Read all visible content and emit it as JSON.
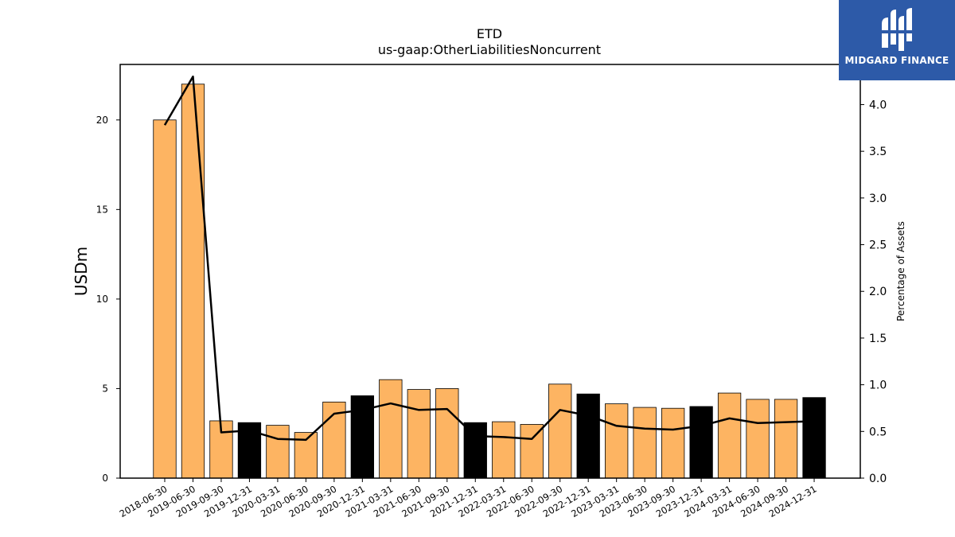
{
  "logo": {
    "text": "MIDGARD FINANCE",
    "icon": "midgard-logo-icon",
    "color": "#2d5aa8"
  },
  "chart_data": {
    "type": "bar",
    "title": "ETD",
    "subtitle": "us-gaap:OtherLiabilitiesNoncurrent",
    "ylabel": "USDm",
    "y2label": "Percentage of Assets",
    "ylim": [
      0,
      23.1
    ],
    "y2lim": [
      0,
      4.43
    ],
    "yticks": [
      0,
      5,
      10,
      15,
      20
    ],
    "y2ticks": [
      "0.0",
      "0.5",
      "1.0",
      "1.5",
      "2.0",
      "2.5",
      "3.0",
      "3.5",
      "4.0"
    ],
    "grid": false,
    "categories": [
      "2018-06-30",
      "2019-06-30",
      "2019-09-30",
      "2019-12-31",
      "2020-03-31",
      "2020-06-30",
      "2020-09-30",
      "2020-12-31",
      "2021-03-31",
      "2021-06-30",
      "2021-09-30",
      "2021-12-31",
      "2022-03-31",
      "2022-06-30",
      "2022-09-30",
      "2022-12-31",
      "2023-03-31",
      "2023-06-30",
      "2023-09-30",
      "2023-12-31",
      "2024-03-31",
      "2024-06-30",
      "2024-09-30",
      "2024-12-31"
    ],
    "bar_values": [
      20.0,
      22.0,
      3.2,
      3.1,
      2.95,
      2.55,
      4.25,
      4.6,
      5.5,
      4.95,
      5.0,
      3.1,
      3.15,
      3.0,
      5.25,
      4.7,
      4.15,
      3.95,
      3.9,
      4.0,
      4.75,
      4.4,
      4.4,
      4.5
    ],
    "bar_colors": [
      "#fdb462",
      "#fdb462",
      "#fdb462",
      "#000000",
      "#fdb462",
      "#fdb462",
      "#fdb462",
      "#000000",
      "#fdb462",
      "#fdb462",
      "#fdb462",
      "#000000",
      "#fdb462",
      "#fdb462",
      "#fdb462",
      "#000000",
      "#fdb462",
      "#fdb462",
      "#fdb462",
      "#000000",
      "#fdb462",
      "#fdb462",
      "#fdb462",
      "#000000"
    ],
    "line_values": [
      3.78,
      4.3,
      0.49,
      0.51,
      0.42,
      0.41,
      0.69,
      0.73,
      0.8,
      0.73,
      0.74,
      0.45,
      0.44,
      0.42,
      0.73,
      0.67,
      0.56,
      0.53,
      0.52,
      0.56,
      0.64,
      0.59,
      0.6,
      0.61
    ],
    "line_color": "#000000"
  }
}
